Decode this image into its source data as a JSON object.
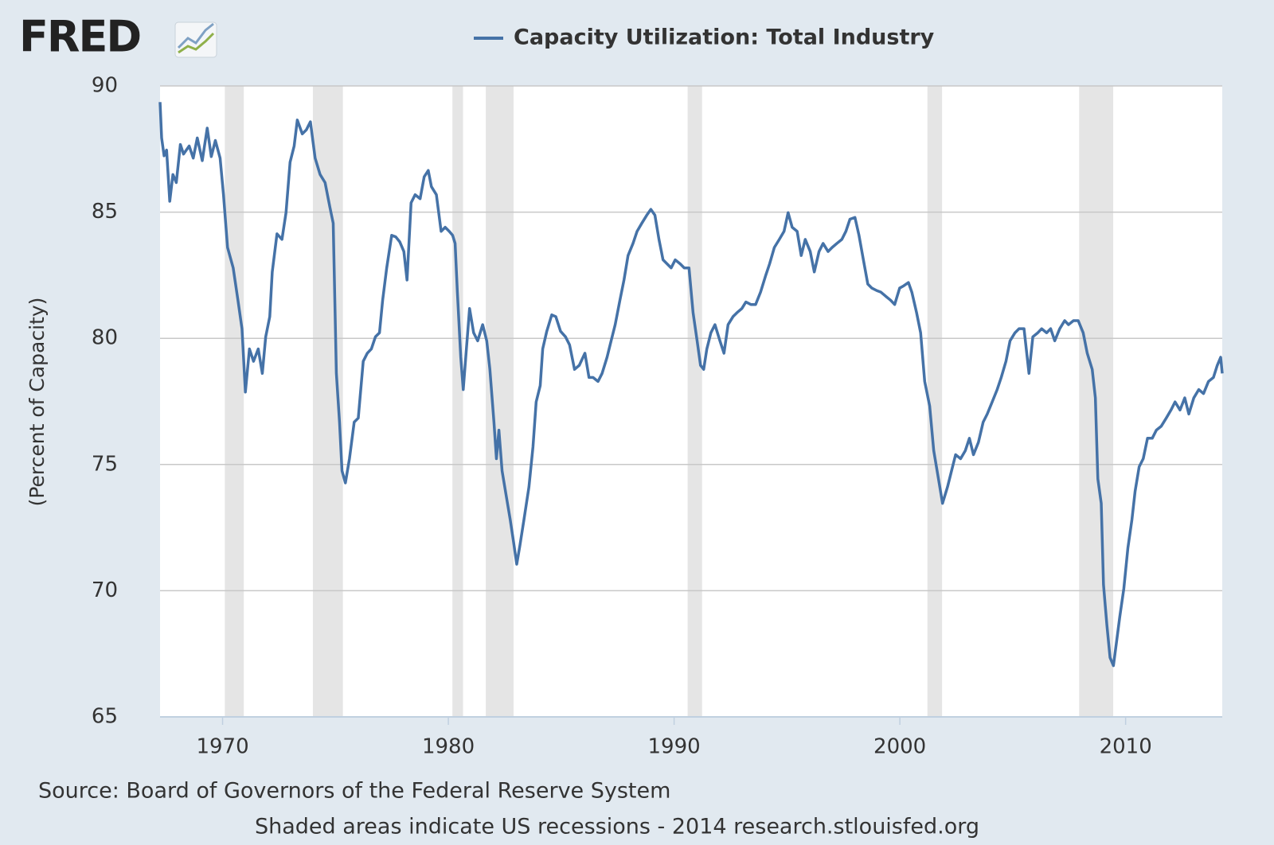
{
  "chart_data": {
    "type": "line",
    "logo": "FRED",
    "y_label": "(Percent of Capacity)",
    "source": "Source: Board of Governors of the Federal Reserve System",
    "note": "Shaded areas indicate US recessions - 2014 research.stlouisfed.org",
    "xlim": [
      1967.23,
      2014.28
    ],
    "xticks": [
      1970,
      1980,
      1990,
      2000,
      2010
    ],
    "ylim": [
      65,
      90
    ],
    "yticks": [
      65,
      70,
      75,
      80,
      85,
      90
    ],
    "grid": true,
    "legend": "top",
    "recessions": [
      [
        1970.1,
        1970.94
      ],
      [
        1974.0,
        1975.33
      ],
      [
        1980.18,
        1980.65
      ],
      [
        1981.66,
        1982.89
      ],
      [
        1990.6,
        1991.24
      ],
      [
        2001.22,
        2001.87
      ],
      [
        2007.94,
        2009.45
      ]
    ],
    "recession_color": "#e5e5e5",
    "x": [
      1967.23,
      1967.3,
      1967.41,
      1967.52,
      1967.66,
      1967.8,
      1967.95,
      1968.13,
      1968.27,
      1968.52,
      1968.7,
      1968.88,
      1969.1,
      1969.32,
      1969.5,
      1969.68,
      1969.89,
      1970.04,
      1970.22,
      1970.47,
      1970.68,
      1970.86,
      1971.01,
      1971.19,
      1971.37,
      1971.58,
      1971.76,
      1971.91,
      1972.09,
      1972.2,
      1972.41,
      1972.63,
      1972.81,
      1972.99,
      1973.17,
      1973.31,
      1973.53,
      1973.71,
      1973.89,
      1974.1,
      1974.32,
      1974.54,
      1974.75,
      1974.9,
      1975.04,
      1975.18,
      1975.29,
      1975.44,
      1975.62,
      1975.83,
      1976.01,
      1976.23,
      1976.41,
      1976.59,
      1976.77,
      1976.95,
      1977.09,
      1977.27,
      1977.49,
      1977.67,
      1977.85,
      1978.03,
      1978.17,
      1978.35,
      1978.53,
      1978.75,
      1978.93,
      1979.11,
      1979.25,
      1979.47,
      1979.68,
      1979.86,
      1980.04,
      1980.19,
      1980.3,
      1980.4,
      1980.55,
      1980.66,
      1980.8,
      1980.94,
      1981.12,
      1981.3,
      1981.52,
      1981.7,
      1981.84,
      1982.02,
      1982.13,
      1982.24,
      1982.38,
      1982.56,
      1982.74,
      1982.89,
      1983.03,
      1983.17,
      1983.35,
      1983.57,
      1983.75,
      1983.89,
      1984.07,
      1984.18,
      1984.36,
      1984.58,
      1984.76,
      1984.97,
      1985.19,
      1985.37,
      1985.59,
      1985.8,
      1986.05,
      1986.23,
      1986.41,
      1986.63,
      1986.81,
      1987.03,
      1987.21,
      1987.39,
      1987.6,
      1987.78,
      1987.96,
      1988.18,
      1988.36,
      1988.57,
      1988.79,
      1988.97,
      1989.15,
      1989.33,
      1989.51,
      1989.69,
      1989.87,
      1990.05,
      1990.27,
      1990.45,
      1990.66,
      1990.84,
      1991.02,
      1991.17,
      1991.31,
      1991.45,
      1991.63,
      1991.81,
      1992.03,
      1992.21,
      1992.39,
      1992.61,
      1992.79,
      1993.0,
      1993.18,
      1993.4,
      1993.61,
      1993.83,
      1994.05,
      1994.23,
      1994.44,
      1994.66,
      1994.87,
      1995.05,
      1995.23,
      1995.45,
      1995.63,
      1995.81,
      1996.03,
      1996.21,
      1996.42,
      1996.6,
      1996.82,
      1997.0,
      1997.21,
      1997.43,
      1997.61,
      1997.79,
      1998.01,
      1998.19,
      1998.37,
      1998.58,
      1998.76,
      1998.98,
      1999.16,
      1999.37,
      1999.59,
      1999.77,
      1999.99,
      2000.17,
      2000.38,
      2000.53,
      2000.74,
      2000.92,
      2001.1,
      2001.32,
      2001.5,
      2001.71,
      2001.89,
      2002.11,
      2002.29,
      2002.47,
      2002.69,
      2002.9,
      2003.08,
      2003.26,
      2003.48,
      2003.69,
      2003.87,
      2004.09,
      2004.31,
      2004.49,
      2004.7,
      2004.88,
      2005.1,
      2005.28,
      2005.5,
      2005.72,
      2005.89,
      2006.11,
      2006.28,
      2006.5,
      2006.68,
      2006.86,
      2007.08,
      2007.3,
      2007.47,
      2007.69,
      2007.9,
      2008.12,
      2008.3,
      2008.52,
      2008.66,
      2008.77,
      2008.92,
      2009.02,
      2009.17,
      2009.31,
      2009.46,
      2009.6,
      2009.74,
      2009.92,
      2010.1,
      2010.28,
      2010.42,
      2010.6,
      2010.78,
      2010.97,
      2011.18,
      2011.36,
      2011.58,
      2011.8,
      2012.01,
      2012.19,
      2012.41,
      2012.62,
      2012.8,
      2013.02,
      2013.24,
      2013.45,
      2013.67,
      2013.89,
      2014.06,
      2014.21,
      2014.28
    ],
    "series": [
      {
        "name": "Capacity Utilization: Total Industry",
        "color": "#4572a7",
        "values": [
          89.36,
          87.94,
          87.23,
          87.46,
          85.43,
          86.49,
          86.17,
          87.68,
          87.3,
          87.62,
          87.14,
          87.94,
          87.04,
          88.33,
          87.2,
          87.84,
          87.14,
          85.69,
          83.6,
          82.79,
          81.51,
          80.38,
          77.87,
          79.58,
          79.09,
          79.58,
          78.61,
          80.06,
          80.86,
          82.63,
          84.14,
          83.92,
          84.98,
          86.98,
          87.62,
          88.65,
          88.1,
          88.26,
          88.58,
          87.14,
          86.49,
          86.17,
          85.21,
          84.56,
          78.61,
          76.68,
          74.75,
          74.27,
          75.23,
          76.68,
          76.84,
          79.09,
          79.41,
          79.58,
          80.06,
          80.22,
          81.51,
          82.79,
          84.08,
          84.02,
          83.82,
          83.44,
          82.31,
          85.37,
          85.69,
          85.53,
          86.4,
          86.65,
          86.01,
          85.69,
          84.24,
          84.4,
          84.24,
          84.08,
          83.76,
          81.83,
          79.25,
          77.97,
          79.58,
          81.18,
          80.22,
          79.9,
          80.54,
          79.9,
          78.77,
          76.68,
          75.23,
          76.36,
          74.75,
          73.78,
          72.82,
          71.92,
          71.05,
          71.79,
          72.82,
          74.11,
          75.71,
          77.48,
          78.13,
          79.58,
          80.28,
          80.93,
          80.86,
          80.28,
          80.06,
          79.74,
          78.77,
          78.93,
          79.41,
          78.45,
          78.45,
          78.29,
          78.61,
          79.25,
          79.9,
          80.54,
          81.51,
          82.31,
          83.28,
          83.76,
          84.24,
          84.56,
          84.88,
          85.11,
          84.88,
          83.92,
          83.11,
          82.95,
          82.79,
          83.11,
          82.95,
          82.79,
          82.79,
          81.02,
          79.9,
          78.93,
          78.77,
          79.58,
          80.22,
          80.54,
          79.9,
          79.41,
          80.54,
          80.86,
          81.02,
          81.18,
          81.44,
          81.34,
          81.34,
          81.83,
          82.47,
          82.95,
          83.6,
          83.92,
          84.24,
          84.98,
          84.4,
          84.24,
          83.28,
          83.92,
          83.44,
          82.63,
          83.44,
          83.76,
          83.44,
          83.6,
          83.76,
          83.92,
          84.24,
          84.72,
          84.79,
          84.08,
          83.18,
          82.15,
          81.99,
          81.89,
          81.83,
          81.67,
          81.51,
          81.34,
          81.99,
          82.08,
          82.21,
          81.83,
          81.02,
          80.22,
          78.29,
          77.32,
          75.55,
          74.43,
          73.46,
          74.11,
          74.75,
          75.39,
          75.23,
          75.55,
          76.04,
          75.39,
          75.88,
          76.68,
          77.0,
          77.48,
          77.97,
          78.45,
          79.09,
          79.9,
          80.22,
          80.38,
          80.38,
          78.61,
          80.06,
          80.22,
          80.38,
          80.22,
          80.38,
          79.9,
          80.38,
          80.7,
          80.54,
          80.7,
          80.7,
          80.22,
          79.41,
          78.77,
          77.64,
          74.43,
          73.46,
          70.24,
          68.64,
          67.35,
          67.03,
          67.99,
          68.96,
          70.08,
          71.69,
          72.82,
          73.94,
          74.91,
          75.23,
          76.04,
          76.04,
          76.36,
          76.52,
          76.84,
          77.16,
          77.48,
          77.16,
          77.64,
          77.0,
          77.64,
          77.97,
          77.81,
          78.29,
          78.45,
          78.93,
          79.25,
          78.61
        ]
      }
    ]
  }
}
